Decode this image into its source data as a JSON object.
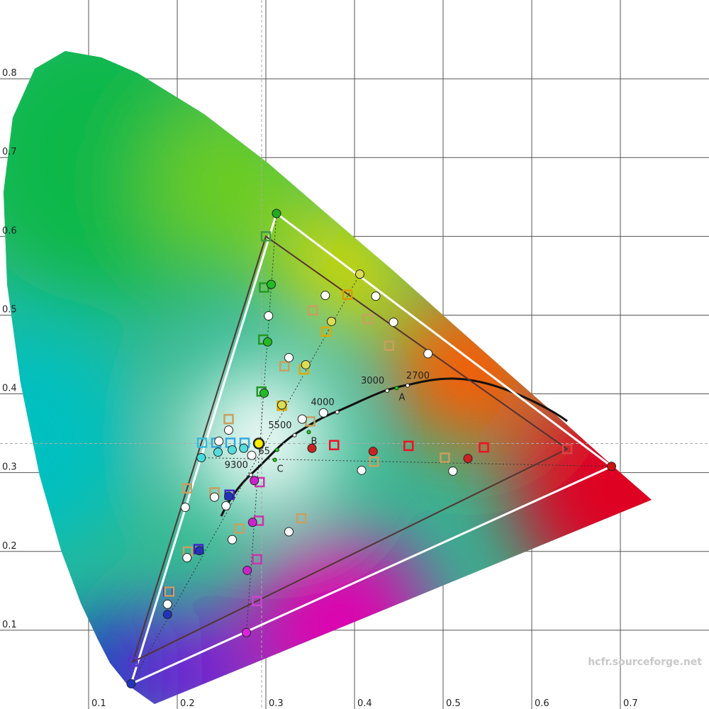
{
  "chart_data": {
    "type": "scatter",
    "xlim": [
      0,
      0.8
    ],
    "ylim": [
      0,
      0.9
    ],
    "xticks": [
      0.1,
      0.2,
      0.3,
      0.4,
      0.5,
      0.6,
      0.7
    ],
    "yticks": [
      0.1,
      0.2,
      0.3,
      0.4,
      0.5,
      0.6,
      0.7,
      0.8
    ],
    "grid": true,
    "watermark": "hcfr.sourceforge.net",
    "series": [
      {
        "marker": "circle",
        "polygon": "#ffffff",
        "colors": [
          "#cc1111",
          "#22aa22",
          "#2233bb"
        ],
        "x": [
          0.69,
          0.312,
          0.148
        ],
        "values": [
          0.308,
          0.629,
          0.032
        ]
      },
      {
        "marker": "square",
        "polygon": "#553333",
        "colors": [
          "#dd4444",
          "#449944",
          "#5533cc"
        ],
        "x": [
          0.64,
          0.3,
          0.15
        ],
        "values": [
          0.33,
          0.6,
          0.06
        ]
      },
      {
        "marker": "circle",
        "colors": [
          "#dddd55",
          "#44dddd",
          "#dd22dd"
        ],
        "x": [
          0.406,
          0.227,
          0.278
        ],
        "values": [
          0.552,
          0.319,
          0.097
        ]
      },
      {
        "marker": "square",
        "colors": [
          "#dd9900",
          "#33bbdd",
          "#cc44cc"
        ],
        "x": [
          0.392,
          0.228,
          0.29
        ],
        "values": [
          0.526,
          0.338,
          0.137
        ]
      },
      {
        "marker": "circle",
        "colors": [
          "#ffee00"
        ],
        "x": [
          0.292
        ],
        "values": [
          0.337
        ]
      },
      {
        "marker": "circle",
        "colors": [
          "#22bb22",
          "#22bb22",
          "#22bb22"
        ],
        "x": [
          0.306,
          0.302,
          0.298
        ],
        "values": [
          0.539,
          0.466,
          0.401
        ]
      },
      {
        "marker": "square",
        "colors": [
          "#229922",
          "#229922",
          "#229922"
        ],
        "x": [
          0.298,
          0.297,
          0.295
        ],
        "values": [
          0.535,
          0.469,
          0.403
        ]
      },
      {
        "marker": "circle",
        "colors": [
          "#cc2222",
          "#cc2222",
          "#cc2222"
        ],
        "x": [
          0.528,
          0.421,
          0.352
        ],
        "values": [
          0.318,
          0.327,
          0.331
        ]
      },
      {
        "marker": "square",
        "colors": [
          "#ee1122",
          "#ee1122",
          "#ee1122"
        ],
        "x": [
          0.546,
          0.461,
          0.377
        ],
        "values": [
          0.332,
          0.334,
          0.335
        ]
      },
      {
        "marker": "circle",
        "colors": [
          "#2233bb",
          "#2233bb",
          "#2233bb"
        ],
        "x": [
          0.189,
          0.225,
          0.258
        ],
        "values": [
          0.12,
          0.201,
          0.27
        ]
      },
      {
        "marker": "square",
        "colors": [
          "#4422cc",
          "#4422cc",
          "#4422cc"
        ],
        "x": [
          0.19,
          0.224,
          0.259
        ],
        "values": [
          0.149,
          0.203,
          0.272
        ]
      },
      {
        "marker": "circle",
        "colors": [
          "#dddd55",
          "#dddd55",
          "#dddd55"
        ],
        "x": [
          0.374,
          0.345,
          0.318
        ],
        "values": [
          0.492,
          0.437,
          0.386
        ]
      },
      {
        "marker": "square",
        "colors": [
          "#ddaa00",
          "#ddaa00",
          "#ddaa00"
        ],
        "x": [
          0.318,
          0.343,
          0.368
        ],
        "values": [
          0.385,
          0.431,
          0.479
        ]
      },
      {
        "marker": "circle",
        "colors": [
          "#55dddd",
          "#55dddd",
          "#55dddd"
        ],
        "x": [
          0.246,
          0.262,
          0.275
        ],
        "values": [
          0.326,
          0.329,
          0.331
        ]
      },
      {
        "marker": "square",
        "colors": [
          "#33aadd",
          "#33aadd",
          "#33aadd"
        ],
        "x": [
          0.244,
          0.26,
          0.276
        ],
        "values": [
          0.338,
          0.338,
          0.338
        ]
      },
      {
        "marker": "circle",
        "colors": [
          "#cc22cc",
          "#cc22cc",
          "#cc22cc"
        ],
        "x": [
          0.279,
          0.285,
          0.287
        ],
        "values": [
          0.176,
          0.237,
          0.29
        ]
      },
      {
        "marker": "square",
        "colors": [
          "#cc33aa",
          "#cc33aa",
          "#cc33aa"
        ],
        "x": [
          0.29,
          0.292,
          0.293
        ],
        "values": [
          0.19,
          0.239,
          0.288
        ]
      },
      {
        "marker": "circle",
        "color": "#ffffff",
        "x": [
          0.367,
          0.424,
          0.444,
          0.483,
          0.303,
          0.326,
          0.341,
          0.365,
          0.258,
          0.247,
          0.284,
          0.408,
          0.511,
          0.242,
          0.209,
          0.255,
          0.262,
          0.211,
          0.189,
          0.326
        ],
        "values": [
          0.525,
          0.524,
          0.491,
          0.451,
          0.499,
          0.446,
          0.368,
          0.376,
          0.354,
          0.34,
          0.322,
          0.303,
          0.302,
          0.269,
          0.256,
          0.258,
          0.215,
          0.192,
          0.133,
          0.225
        ]
      },
      {
        "marker": "square",
        "color": "#c8a060",
        "x": [
          0.353,
          0.415,
          0.439,
          0.321,
          0.35,
          0.258,
          0.422,
          0.502,
          0.211,
          0.242,
          0.27,
          0.34,
          0.212,
          0.191
        ],
        "values": [
          0.506,
          0.495,
          0.461,
          0.435,
          0.365,
          0.368,
          0.314,
          0.319,
          0.28,
          0.275,
          0.229,
          0.242,
          0.2,
          0.149
        ]
      }
    ],
    "cct_points": [
      {
        "label": "2700",
        "x": 0.4599,
        "y": 0.4106
      },
      {
        "label": "3000",
        "x": 0.4369,
        "y": 0.4041
      },
      {
        "label": "4000",
        "x": 0.3805,
        "y": 0.3768
      },
      {
        "label": "5500",
        "x": 0.3324,
        "y": 0.3475
      },
      {
        "label": "9300",
        "x": 0.2831,
        "y": 0.2971
      }
    ],
    "illuminants": [
      {
        "label": "A",
        "x": 0.4476,
        "y": 0.4074
      },
      {
        "label": "B",
        "x": 0.3484,
        "y": 0.3516
      },
      {
        "label": "C",
        "x": 0.3101,
        "y": 0.3162
      },
      {
        "label": "65",
        "x": 0.3127,
        "y": 0.329
      }
    ]
  }
}
